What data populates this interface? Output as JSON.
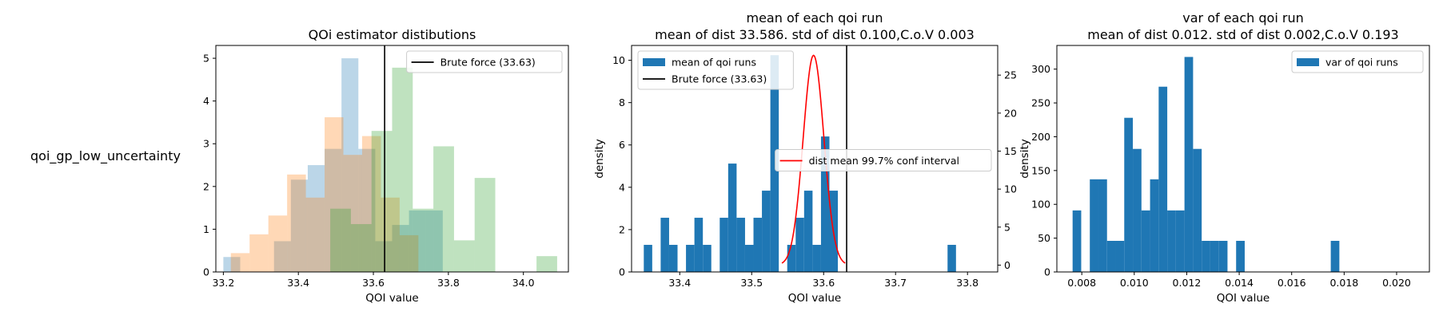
{
  "row_label": "qoi_gp_low_uncertainty",
  "chart_data": [
    {
      "type": "histogram",
      "title": "QOi estimator distibutions",
      "xlabel": "QOI value",
      "ylabel": "",
      "xlim": [
        33.18,
        34.12
      ],
      "ylim": [
        0,
        5.3
      ],
      "xticks": [
        33.2,
        33.4,
        33.6,
        33.8,
        34.0
      ],
      "xtick_labels": [
        "33.2",
        "33.4",
        "33.6",
        "33.8",
        "34.0"
      ],
      "yticks": [
        0,
        1,
        2,
        3,
        4,
        5
      ],
      "ytick_labels": [
        "0",
        "1",
        "2",
        "3",
        "4",
        "5"
      ],
      "legend": {
        "placement": "top-right",
        "entries": [
          {
            "label": "Brute force (33.63)",
            "color": "#000000",
            "kind": "line"
          }
        ]
      },
      "vline": {
        "x": 33.63,
        "color": "#000000"
      },
      "series": [
        {
          "color": "#1f77b4",
          "opacity": 0.3,
          "bins": [
            [
              33.2,
              33.245,
              0.35
            ],
            [
              33.245,
              33.29,
              0
            ],
            [
              33.29,
              33.335,
              0
            ],
            [
              33.335,
              33.38,
              0.72
            ],
            [
              33.38,
              33.425,
              2.16
            ],
            [
              33.425,
              33.47,
              2.5
            ],
            [
              33.47,
              33.515,
              2.88
            ],
            [
              33.515,
              33.56,
              5.0
            ],
            [
              33.56,
              33.605,
              2.88
            ],
            [
              33.605,
              33.65,
              0.72
            ],
            [
              33.65,
              33.695,
              1.1
            ],
            [
              33.695,
              33.74,
              1.44
            ],
            [
              33.74,
              33.785,
              1.44
            ]
          ]
        },
        {
          "color": "#ff7f0e",
          "opacity": 0.3,
          "bins": [
            [
              33.22,
              33.27,
              0.44
            ],
            [
              33.27,
              33.32,
              0.88
            ],
            [
              33.32,
              33.37,
              1.32
            ],
            [
              33.37,
              33.42,
              2.28
            ],
            [
              33.42,
              33.47,
              1.74
            ],
            [
              33.47,
              33.52,
              3.62
            ],
            [
              33.52,
              33.57,
              2.74
            ],
            [
              33.57,
              33.62,
              3.18
            ],
            [
              33.62,
              33.67,
              1.74
            ],
            [
              33.67,
              33.72,
              0.86
            ]
          ]
        },
        {
          "color": "#2ca02c",
          "opacity": 0.3,
          "bins": [
            [
              33.485,
              33.54,
              1.48
            ],
            [
              33.54,
              33.595,
              1.12
            ],
            [
              33.595,
              33.65,
              3.3
            ],
            [
              33.65,
              33.705,
              4.78
            ],
            [
              33.705,
              33.76,
              1.48
            ],
            [
              33.76,
              33.815,
              2.94
            ],
            [
              33.815,
              33.87,
              0.74
            ],
            [
              33.87,
              33.925,
              2.2
            ],
            [
              33.925,
              33.98,
              0
            ],
            [
              33.98,
              34.035,
              0
            ],
            [
              34.035,
              34.09,
              0.37
            ]
          ]
        }
      ]
    },
    {
      "type": "histogram",
      "title": "mean of each qoi run",
      "subtitle": "mean of dist 33.586. std of dist 0.100,C.o.V 0.003",
      "xlabel": "QOI value",
      "ylabel": "density",
      "xlim": [
        33.333,
        33.842
      ],
      "ylim": [
        0,
        10.7
      ],
      "ylim_right": [
        -0.9,
        28.9
      ],
      "xticks": [
        33.4,
        33.5,
        33.6,
        33.7,
        33.8
      ],
      "xtick_labels": [
        "33.4",
        "33.5",
        "33.6",
        "33.7",
        "33.8"
      ],
      "yticks": [
        0,
        2,
        4,
        6,
        8,
        10
      ],
      "ytick_labels": [
        "0",
        "2",
        "4",
        "6",
        "8",
        "10"
      ],
      "yticks_right": [
        0,
        5,
        10,
        15,
        20,
        25
      ],
      "ytick_labels_right": [
        "0",
        "5",
        "10",
        "15",
        "20",
        "25"
      ],
      "legend": {
        "placement": "top-left",
        "entries": [
          {
            "label": "mean of qoi runs",
            "color": "#1f77b4",
            "kind": "patch"
          },
          {
            "label": "Brute force (33.63)",
            "color": "#000000",
            "kind": "line"
          }
        ]
      },
      "legend2": {
        "placement": "center-right",
        "entries": [
          {
            "label": "dist mean 99.7% conf interval",
            "color": "#ff0000",
            "kind": "line"
          }
        ]
      },
      "vline": {
        "x": 33.632,
        "color": "#000000"
      },
      "bin_edges_start": 33.35,
      "bin_width": 0.01173,
      "series": [
        {
          "color": "#1f77b4",
          "opacity": 1,
          "values": [
            1.28,
            0,
            2.56,
            1.28,
            0,
            1.28,
            2.56,
            1.28,
            0,
            2.56,
            5.12,
            2.56,
            1.28,
            2.56,
            3.84,
            10.24,
            0,
            1.28,
            2.56,
            3.84,
            1.28,
            6.4,
            3.84,
            0,
            0,
            0,
            0,
            0,
            0,
            0,
            0,
            0,
            0,
            0,
            0,
            0,
            1.28
          ]
        }
      ],
      "curve": {
        "color": "#ff0000",
        "mean": 33.586,
        "sd": 0.0144,
        "peak": 27.6,
        "x_range": [
          33.542,
          33.63
        ],
        "axis": "right"
      }
    },
    {
      "type": "histogram",
      "title": "var of each qoi run",
      "subtitle": "mean of dist 0.012. std of dist 0.002,C.o.V 0.193",
      "xlabel": "QOI value",
      "ylabel": "density",
      "xlim": [
        0.00705,
        0.02125
      ],
      "ylim": [
        0,
        335
      ],
      "xticks": [
        0.008,
        0.01,
        0.012,
        0.014,
        0.016,
        0.018,
        0.02
      ],
      "xtick_labels": [
        "0.008",
        "0.010",
        "0.012",
        "0.014",
        "0.016",
        "0.018",
        "0.020"
      ],
      "yticks": [
        0,
        50,
        100,
        150,
        200,
        250,
        300
      ],
      "ytick_labels": [
        "0",
        "50",
        "100",
        "150",
        "200",
        "250",
        "300"
      ],
      "legend": {
        "placement": "top-right",
        "entries": [
          {
            "label": "var of qoi runs",
            "color": "#1f77b4",
            "kind": "patch"
          }
        ]
      },
      "bin_edges_start": 0.00765,
      "bin_width": 0.000328,
      "series": [
        {
          "color": "#1f77b4",
          "opacity": 1,
          "values": [
            91,
            0,
            137,
            137,
            46,
            46,
            228,
            182,
            91,
            137,
            274,
            91,
            91,
            318,
            182,
            46,
            46,
            46,
            0,
            46,
            0,
            0,
            0,
            0,
            0,
            0,
            0,
            0,
            0,
            0,
            46
          ]
        }
      ]
    }
  ]
}
